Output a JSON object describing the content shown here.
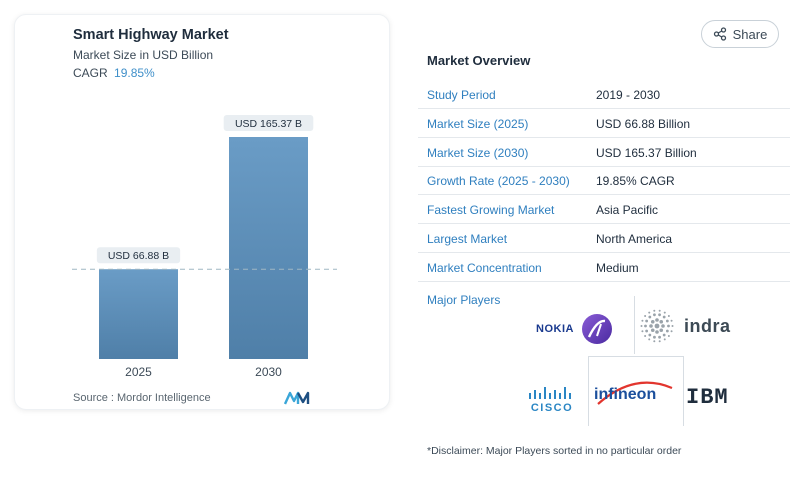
{
  "chart_card": {
    "title": "Smart Highway Market",
    "subtitle": "Market Size in USD Billion",
    "cagr_label": "CAGR",
    "cagr_value": "19.85%",
    "source": "Source :  Mordor Intelligence",
    "logo_icon": "mordor-intelligence-logo"
  },
  "chart_data": {
    "type": "bar",
    "categories": [
      "2025",
      "2030"
    ],
    "values": [
      66.88,
      165.37
    ],
    "data_labels": [
      "USD 66.88 B",
      "USD 165.37 B"
    ],
    "title": "Smart Highway Market",
    "subtitle": "Market Size in USD Billion",
    "xlabel": "",
    "ylabel": "",
    "ylim": [
      0,
      165.37
    ],
    "grid": false,
    "reference_line_at": 66.88,
    "colors": {
      "bar_top": "#6a9cc6",
      "bar_bottom": "#4f7fa8",
      "reference_line": "#9fb7c4"
    }
  },
  "share": {
    "label": "Share",
    "icon": "share-icon"
  },
  "overview": {
    "title": "Market Overview",
    "rows": [
      {
        "label": "Study Period",
        "value": "2019 - 2030"
      },
      {
        "label": "Market Size (2025)",
        "value": "USD 66.88 Billion"
      },
      {
        "label": "Market Size (2030)",
        "value": "USD 165.37 Billion"
      },
      {
        "label": "Growth Rate (2025 - 2030)",
        "value": "19.85% CAGR"
      },
      {
        "label": "Fastest Growing Market",
        "value": "Asia Pacific"
      },
      {
        "label": "Largest Market",
        "value": "North America"
      },
      {
        "label": "Market Concentration",
        "value": "Medium"
      }
    ]
  },
  "players": {
    "title": "Major Players",
    "logos": [
      {
        "name": "NOKIA",
        "icon": "nokia-logo"
      },
      {
        "name": "indra",
        "icon": "indra-logo"
      },
      {
        "name": "CISCO",
        "icon": "cisco-logo"
      },
      {
        "name": "infineon",
        "icon": "infineon-logo"
      },
      {
        "name": "IBM",
        "icon": "ibm-logo"
      }
    ]
  },
  "disclaimer": "*Disclaimer: Major Players sorted in no particular order",
  "colors": {
    "accent_blue": "#2f7fbf",
    "cagr_blue": "#3f8fc9",
    "text_dark": "#1f2d3d"
  }
}
